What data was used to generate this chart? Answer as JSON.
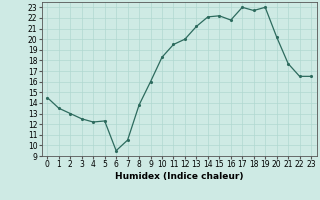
{
  "x": [
    0,
    1,
    2,
    3,
    4,
    5,
    6,
    7,
    8,
    9,
    10,
    11,
    12,
    13,
    14,
    15,
    16,
    17,
    18,
    19,
    20,
    21,
    22,
    23
  ],
  "y": [
    14.5,
    13.5,
    13.0,
    12.5,
    12.2,
    12.3,
    9.5,
    10.5,
    13.8,
    16.0,
    18.3,
    19.5,
    20.0,
    21.2,
    22.1,
    22.2,
    21.8,
    23.0,
    22.7,
    23.0,
    20.2,
    17.7,
    16.5,
    16.5
  ],
  "xlabel": "Humidex (Indice chaleur)",
  "xlim": [
    -0.5,
    23.5
  ],
  "ylim": [
    9,
    23.5
  ],
  "yticks": [
    9,
    10,
    11,
    12,
    13,
    14,
    15,
    16,
    17,
    18,
    19,
    20,
    21,
    22,
    23
  ],
  "xticks": [
    0,
    1,
    2,
    3,
    4,
    5,
    6,
    7,
    8,
    9,
    10,
    11,
    12,
    13,
    14,
    15,
    16,
    17,
    18,
    19,
    20,
    21,
    22,
    23
  ],
  "line_color": "#2d6b5e",
  "marker_color": "#2d6b5e",
  "bg_color": "#ceeae4",
  "grid_color": "#b0d8d0",
  "label_fontsize": 6.5,
  "tick_fontsize": 5.5
}
